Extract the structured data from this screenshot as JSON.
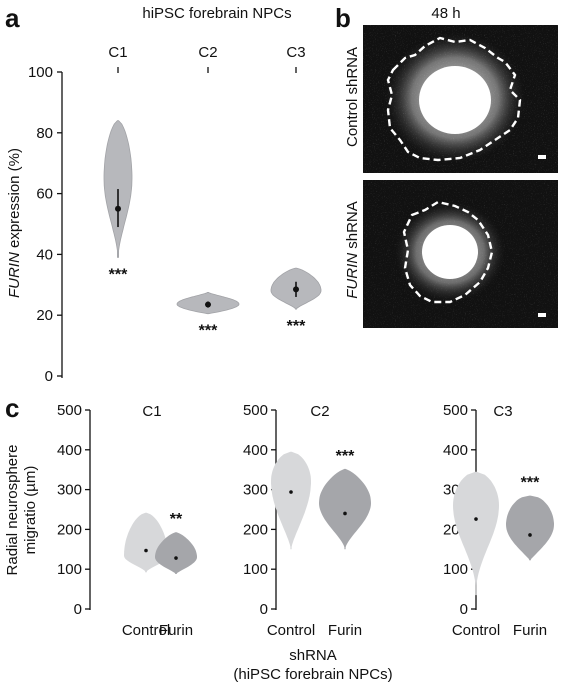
{
  "panel_a": {
    "letter": "a",
    "title": "hiPSC forebrain NPCs",
    "ylabel_italic": "FURIN",
    "ylabel_rest": " expression (%)",
    "yticks": [
      "0",
      "20",
      "40",
      "60",
      "80",
      "100"
    ]
  },
  "panel_b": {
    "letter": "b",
    "title": "48 h",
    "row1_label": "Control shRNA",
    "row2_label_italic": "FURIN",
    "row2_label_rest": " shRNA"
  },
  "panel_c": {
    "letter": "c",
    "ylabel_line1": "Radial neurosphere",
    "ylabel_line2": "migratio (µm)",
    "xlabel_line1": "shRNA",
    "xlabel_line2": "(hiPSC forebrain NPCs)",
    "yticks": [
      "0",
      "100",
      "200",
      "300",
      "400",
      "500"
    ],
    "xtick_labels": [
      "Control",
      "Furin"
    ]
  },
  "colors": {
    "violin_grey": "#b7b8bc",
    "violin_light": "#d7d8da",
    "violin_dark": "#a5a6aa"
  },
  "chart_data": [
    {
      "type": "violin",
      "title": "hiPSC forebrain NPCs",
      "ylabel": "FURIN expression (%)",
      "ylim": [
        0,
        100
      ],
      "categories": [
        "C1",
        "C2",
        "C3"
      ],
      "values": [
        55,
        23.5,
        28.5
      ],
      "ci": [
        [
          49,
          61.5
        ],
        [
          22.5,
          24.5
        ],
        [
          26,
          31
        ]
      ],
      "range": [
        [
          39,
          84
        ],
        [
          20.5,
          27.5
        ],
        [
          22,
          35.5
        ]
      ],
      "significance": [
        "***",
        "***",
        "***"
      ]
    },
    {
      "type": "violin",
      "title": "C1",
      "ylim": [
        0,
        500
      ],
      "categories": [
        "Control",
        "Furin"
      ],
      "values": [
        147,
        128
      ],
      "range": [
        [
          92,
          242
        ],
        [
          88,
          193
        ]
      ],
      "significance": [
        "",
        "**"
      ]
    },
    {
      "type": "violin",
      "title": "C2",
      "ylim": [
        0,
        500
      ],
      "categories": [
        "Control",
        "Furin"
      ],
      "values": [
        294,
        240
      ],
      "range": [
        [
          150,
          395
        ],
        [
          150,
          352
        ]
      ],
      "significance": [
        "",
        "***"
      ]
    },
    {
      "type": "violin",
      "title": "C3",
      "ylim": [
        0,
        500
      ],
      "categories": [
        "Control",
        "Furin"
      ],
      "values": [
        226,
        186
      ],
      "range": [
        [
          35,
          345
        ],
        [
          122,
          285
        ]
      ],
      "significance": [
        "",
        "***"
      ]
    }
  ]
}
